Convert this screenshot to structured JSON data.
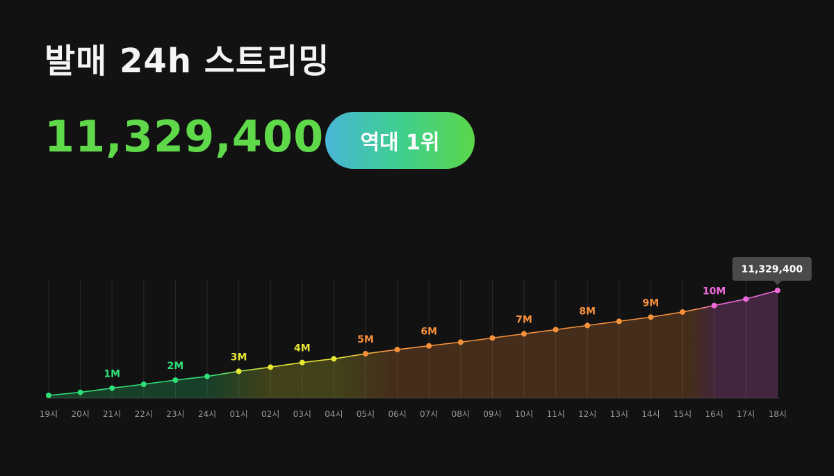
{
  "header": {
    "title": "발매 24h 스트리밍",
    "total": "11,329,400",
    "badge": "역대 1위"
  },
  "colors": {
    "background": "#121212",
    "total_text": "#5fd84a",
    "badge_gradient": [
      "#49b6d8",
      "#3fcf8e",
      "#5bd64a"
    ],
    "segments": [
      "#2ee07a",
      "#e6e635",
      "#f7913a",
      "#ee6adb"
    ]
  },
  "chart_data": {
    "type": "area",
    "categories": [
      "19시",
      "20시",
      "21시",
      "22시",
      "23시",
      "24시",
      "01시",
      "02시",
      "03시",
      "04시",
      "05시",
      "06시",
      "07시",
      "08시",
      "09시",
      "10시",
      "11시",
      "12시",
      "13시",
      "14시",
      "15시",
      "16시",
      "17시",
      "18시"
    ],
    "values": [
      0,
      330000,
      780000,
      1200000,
      1650000,
      2050000,
      2600000,
      3050000,
      3550000,
      3950000,
      4500000,
      4950000,
      5350000,
      5750000,
      6200000,
      6650000,
      7100000,
      7550000,
      8000000,
      8450000,
      9000000,
      9700000,
      10400000,
      11329400
    ],
    "ylim": [
      0,
      11700000
    ],
    "milestones": [
      {
        "label": "1M",
        "index": 2
      },
      {
        "label": "2M",
        "index": 4
      },
      {
        "label": "3M",
        "index": 6
      },
      {
        "label": "4M",
        "index": 8
      },
      {
        "label": "5M",
        "index": 10
      },
      {
        "label": "6M",
        "index": 12
      },
      {
        "label": "7M",
        "index": 15
      },
      {
        "label": "8M",
        "index": 17
      },
      {
        "label": "9M",
        "index": 19
      },
      {
        "label": "10M",
        "index": 21
      }
    ],
    "tooltip": {
      "index": 23,
      "text": "11,329,400"
    },
    "grid": true,
    "xlabel": "",
    "ylabel": "",
    "title": ""
  }
}
